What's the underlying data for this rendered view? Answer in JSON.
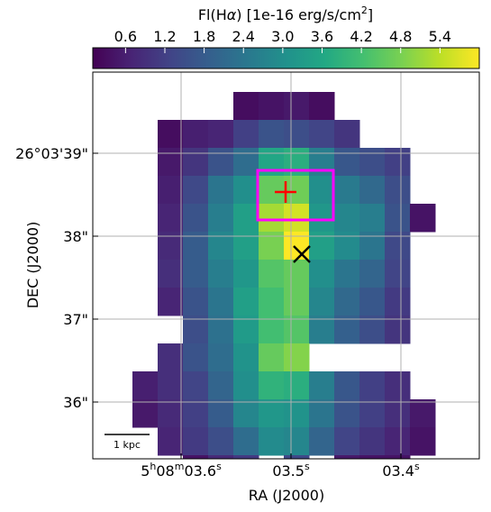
{
  "chart_data": {
    "type": "heatmap",
    "colormap": "viridis",
    "colorbar": {
      "title": "Fl(Hα) [1e-16 erg/s/cm²]",
      "title_main": "Fl(H",
      "title_greek": "α",
      "title_rest": ") [1e-16 erg/s/cm",
      "title_sup": "2",
      "title_end": "]",
      "ticks": [
        "0.6",
        "1.2",
        "1.8",
        "2.4",
        "3.0",
        "3.6",
        "4.2",
        "4.8",
        "5.4"
      ],
      "tick_values": [
        0.6,
        1.2,
        1.8,
        2.4,
        3.0,
        3.6,
        4.2,
        4.8,
        5.4
      ],
      "range": [
        0.1,
        6.0
      ]
    },
    "xlabel": "RA (J2000)",
    "ylabel": "DEC (J2000)",
    "x_ticks": [
      {
        "h": "5",
        "m": "08",
        "s": "03.6",
        "value": 0.0
      },
      {
        "h": "",
        "m": "",
        "s": "03.5",
        "value": 1.0
      },
      {
        "h": "",
        "m": "",
        "s": "03.4",
        "value": 2.0
      }
    ],
    "y_ticks": [
      {
        "label": "26°03'39\"",
        "value": 39
      },
      {
        "label": "38\"",
        "value": 38
      },
      {
        "label": "37\"",
        "value": 37
      },
      {
        "label": "36\"",
        "value": 36
      }
    ],
    "grid": true,
    "scale_bar_label": "1 kpc",
    "markers": [
      {
        "name": "plus",
        "symbol": "+",
        "color": "#ff0000",
        "col": 5,
        "row": 4
      },
      {
        "name": "cross",
        "symbol": "x",
        "color": "#000000",
        "col": 6,
        "row": 7
      }
    ],
    "aperture_box": {
      "color": "#ff00ff",
      "col_start": 5,
      "col_end": 7,
      "row_start": 3,
      "row_end": 5
    },
    "grid_origin": {
      "col0": 1,
      "row0": 0
    },
    "pixels": [
      [
        null,
        null,
        null,
        null,
        null,
        0.3,
        0.4,
        0.5,
        0.3,
        null,
        null,
        null,
        null,
        null
      ],
      [
        null,
        null,
        0.3,
        0.6,
        0.7,
        1.2,
        1.6,
        1.5,
        1.3,
        1.0,
        null,
        null,
        null,
        null
      ],
      [
        null,
        null,
        0.5,
        1.0,
        1.6,
        2.2,
        3.6,
        3.8,
        2.6,
        1.7,
        1.5,
        1.2,
        null,
        null
      ],
      [
        null,
        null,
        0.6,
        1.4,
        2.4,
        3.0,
        4.6,
        4.7,
        3.0,
        2.5,
        2.1,
        1.5,
        null,
        null
      ],
      [
        null,
        null,
        0.7,
        1.6,
        2.6,
        3.4,
        5.2,
        5.6,
        3.2,
        2.8,
        2.6,
        1.6,
        0.4,
        null
      ],
      [
        null,
        null,
        0.8,
        1.8,
        2.8,
        3.4,
        4.8,
        6.0,
        3.4,
        2.9,
        2.4,
        1.4,
        null,
        null
      ],
      [
        null,
        null,
        0.9,
        1.8,
        2.6,
        3.2,
        4.4,
        4.6,
        3.0,
        2.4,
        2.0,
        1.3,
        null,
        null
      ],
      [
        null,
        null,
        0.7,
        1.6,
        2.4,
        3.4,
        4.2,
        4.6,
        2.8,
        2.1,
        1.7,
        1.1,
        null,
        null
      ],
      [
        null,
        null,
        null,
        1.5,
        2.3,
        3.3,
        4.2,
        4.4,
        2.6,
        1.9,
        1.5,
        1.0,
        null,
        null
      ],
      [
        null,
        null,
        0.9,
        1.6,
        2.2,
        3.1,
        4.6,
        4.9,
        null,
        null,
        null,
        null,
        null,
        null
      ],
      [
        null,
        0.6,
        0.9,
        1.3,
        2.0,
        3.0,
        3.9,
        3.8,
        2.6,
        1.7,
        1.2,
        0.9,
        null,
        null
      ],
      [
        null,
        0.5,
        0.8,
        1.2,
        1.8,
        2.8,
        3.2,
        3.1,
        2.4,
        1.6,
        1.2,
        0.9,
        0.5,
        null
      ],
      [
        null,
        null,
        0.7,
        1.1,
        1.5,
        2.2,
        2.9,
        2.8,
        2.0,
        1.3,
        1.0,
        0.7,
        0.4,
        null
      ],
      [
        null,
        null,
        null,
        0.4,
        0.8,
        1.1,
        null,
        1.4,
        null,
        0.5,
        0.4,
        0.4,
        null,
        null
      ],
      [
        null,
        null,
        null,
        null,
        null,
        0.5,
        null,
        null,
        null,
        0.3,
        0.3,
        0.3,
        null,
        null
      ],
      [
        null,
        null,
        null,
        null,
        null,
        null,
        null,
        null,
        null,
        null,
        0.2,
        0.2,
        null,
        null
      ]
    ]
  }
}
